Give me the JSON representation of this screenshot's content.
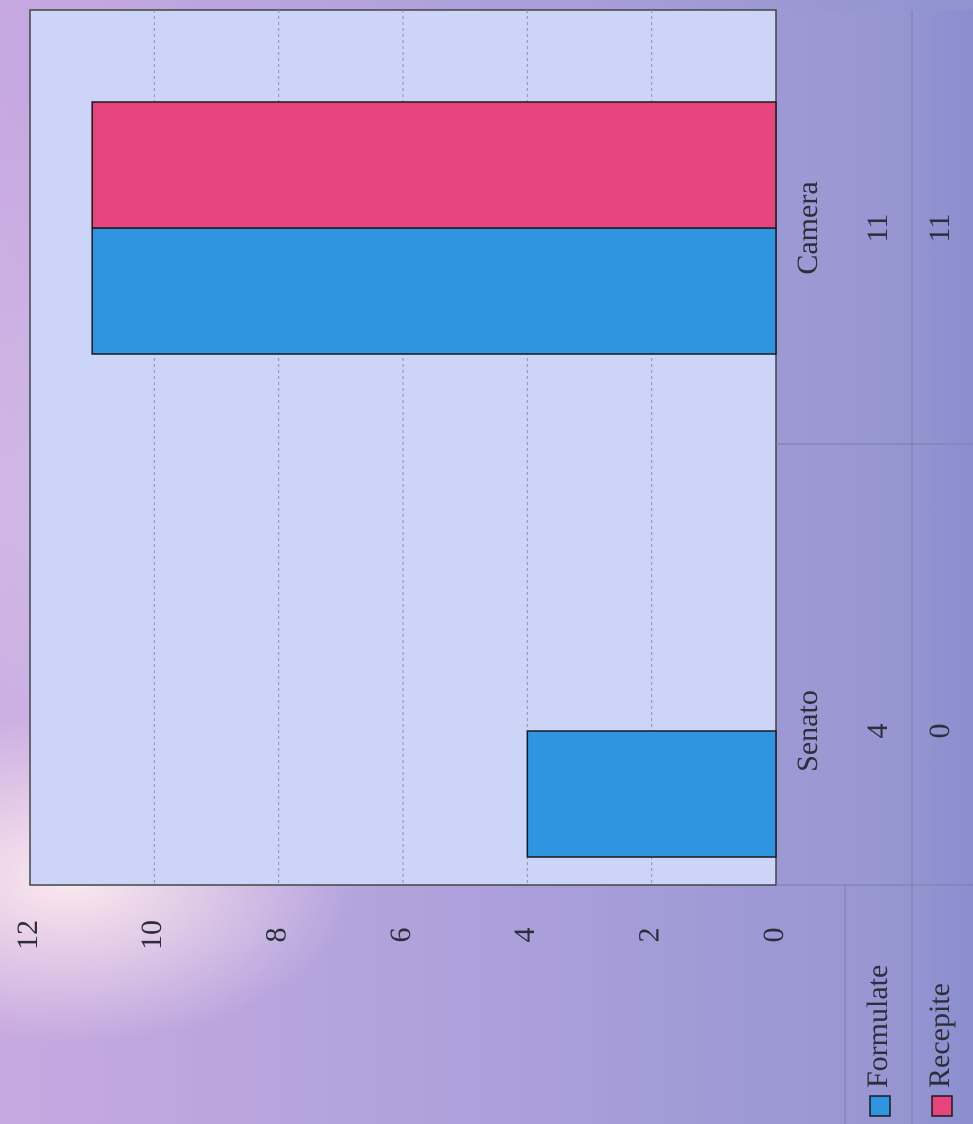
{
  "chart_data": {
    "type": "bar",
    "orientation": "rotated-90-clockwise",
    "categories": [
      "Senato",
      "Camera"
    ],
    "series": [
      {
        "name": "Formulate",
        "values": [
          4,
          11
        ],
        "color": "#2f95e0"
      },
      {
        "name": "Recepite",
        "values": [
          0,
          11
        ],
        "color": "#e5457c"
      }
    ],
    "yticks": [
      "0",
      "2",
      "4",
      "6",
      "8",
      "10",
      "12"
    ],
    "ylim": [
      0,
      12
    ],
    "grid": true,
    "plot_background": "#ccd4f7",
    "data_table": {
      "rows": [
        {
          "label": "Formulate",
          "cells": [
            "4",
            "11"
          ]
        },
        {
          "label": "Recepite",
          "cells": [
            "0",
            "11"
          ]
        }
      ]
    }
  }
}
